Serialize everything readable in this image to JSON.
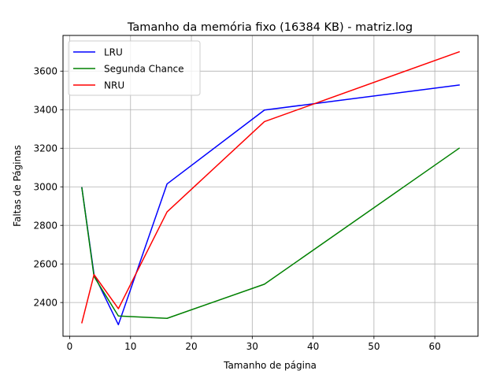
{
  "chart_data": {
    "type": "line",
    "title": "Tamanho da memória fixo (16384 KB) - matriz.log",
    "xlabel": "Tamanho de página",
    "ylabel": "Faltas de Páginas",
    "x": [
      2,
      4,
      8,
      16,
      32,
      64
    ],
    "series": [
      {
        "name": "LRU",
        "color": "#0000ff",
        "values": [
          2995,
          2545,
          2285,
          3015,
          3398,
          3528
        ]
      },
      {
        "name": "Segunda Chance",
        "color": "#008000",
        "values": [
          2995,
          2535,
          2330,
          2318,
          2495,
          3200
        ]
      },
      {
        "name": "NRU",
        "color": "#ff0000",
        "values": [
          2295,
          2545,
          2368,
          2870,
          3338,
          3700
        ]
      }
    ],
    "xlim": [
      -1.1,
      67.1
    ],
    "ylim": [
      2225,
      3785
    ],
    "xticks": [
      0,
      10,
      20,
      30,
      40,
      50,
      60
    ],
    "yticks": [
      2400,
      2600,
      2800,
      3000,
      3200,
      3400,
      3600
    ],
    "grid": true,
    "legend_position": "upper left"
  }
}
